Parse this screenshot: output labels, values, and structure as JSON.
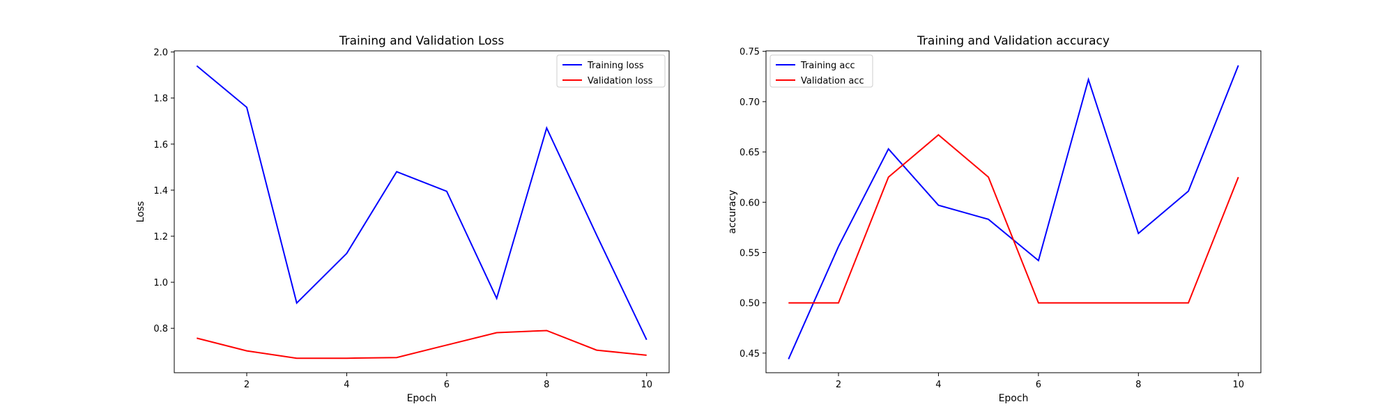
{
  "chart_data": [
    {
      "type": "line",
      "title": "Training and Validation Loss",
      "xlabel": "Epoch",
      "ylabel": "Loss",
      "xlim": [
        0.55,
        10.45
      ],
      "ylim": [
        0.607,
        2.005
      ],
      "xticks": [
        2,
        4,
        6,
        8,
        10
      ],
      "yticks": [
        0.8,
        1.0,
        1.2,
        1.4,
        1.6,
        1.8,
        2.0
      ],
      "ytick_labels": [
        "0.8",
        "1.0",
        "1.2",
        "1.4",
        "1.6",
        "1.8",
        "2.0"
      ],
      "grid": false,
      "legend_position": "top-right",
      "x": [
        1,
        2,
        3,
        4,
        5,
        6,
        7,
        8,
        9,
        10
      ],
      "series": [
        {
          "name": "Training loss",
          "color": "#0000ff",
          "values": [
            1.94,
            1.76,
            0.91,
            1.125,
            1.48,
            1.395,
            0.93,
            1.67,
            1.205,
            0.75
          ]
        },
        {
          "name": "Validation loss",
          "color": "#ff0000",
          "values": [
            0.757,
            0.702,
            0.67,
            0.67,
            0.673,
            0.727,
            0.781,
            0.79,
            0.705,
            0.683
          ]
        }
      ]
    },
    {
      "type": "line",
      "title": "Training and Validation accuracy",
      "xlabel": "Epoch",
      "ylabel": "accuracy",
      "xlim": [
        0.55,
        10.45
      ],
      "ylim": [
        0.4305,
        0.7505
      ],
      "xticks": [
        2,
        4,
        6,
        8,
        10
      ],
      "yticks": [
        0.45,
        0.5,
        0.55,
        0.6,
        0.65,
        0.7,
        0.75
      ],
      "ytick_labels": [
        "0.45",
        "0.50",
        "0.55",
        "0.60",
        "0.65",
        "0.70",
        "0.75"
      ],
      "grid": false,
      "legend_position": "top-left",
      "x": [
        1,
        2,
        3,
        4,
        5,
        6,
        7,
        8,
        9,
        10
      ],
      "series": [
        {
          "name": "Training acc",
          "color": "#0000ff",
          "values": [
            0.444,
            0.556,
            0.653,
            0.597,
            0.583,
            0.542,
            0.722,
            0.569,
            0.611,
            0.736
          ]
        },
        {
          "name": "Validation acc",
          "color": "#ff0000",
          "values": [
            0.5,
            0.5,
            0.625,
            0.667,
            0.625,
            0.5,
            0.5,
            0.5,
            0.5,
            0.625
          ]
        }
      ]
    }
  ]
}
